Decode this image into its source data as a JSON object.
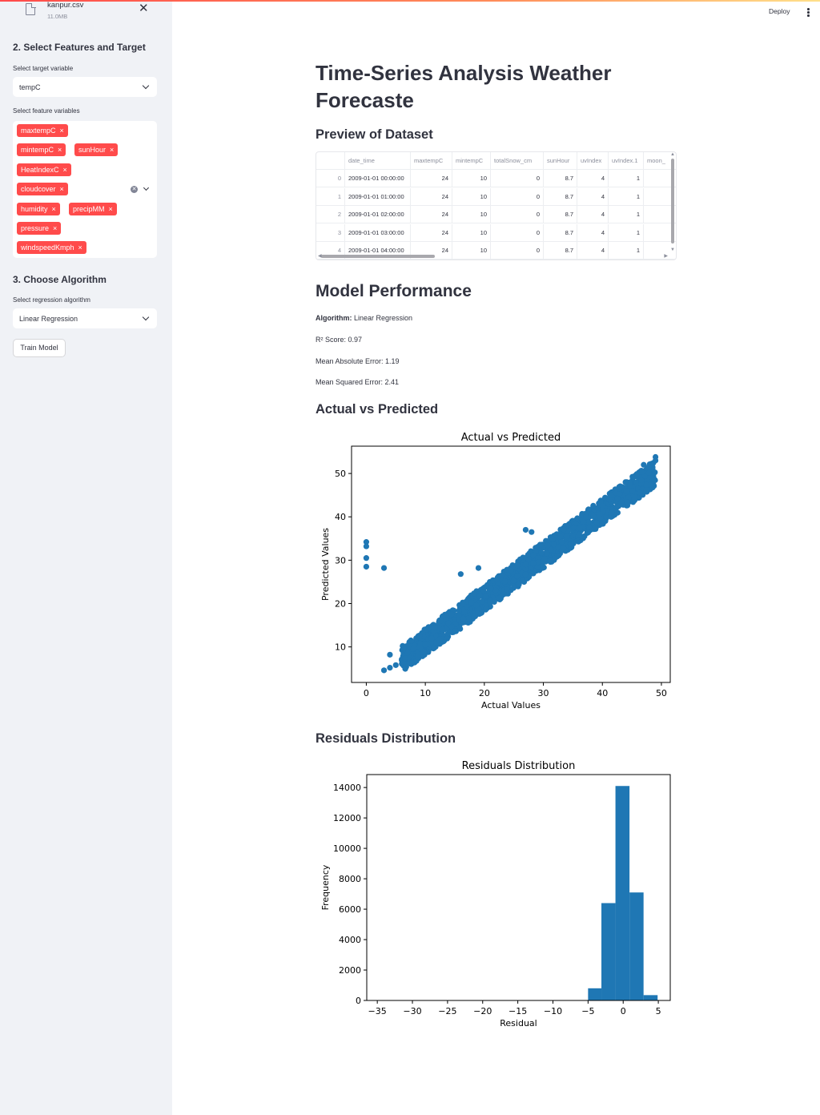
{
  "file": {
    "name": "kanpur.csv",
    "size": "11.0MB"
  },
  "sidebar": {
    "section2_title": "2. Select Features and Target",
    "target_label": "Select target variable",
    "target_value": "tempC",
    "features_label": "Select feature variables",
    "features": [
      "maxtempC",
      "mintempC",
      "sunHour",
      "HeatIndexC",
      "cloudcover",
      "humidity",
      "precipMM",
      "pressure",
      "windspeedKmph"
    ],
    "section3_title": "3. Choose Algorithm",
    "algo_label": "Select regression algorithm",
    "algo_value": "Linear Regression",
    "train_button": "Train Model"
  },
  "header": {
    "deploy": "Deploy"
  },
  "main": {
    "title": "Time-Series Analysis Weather Forecaste",
    "preview_heading": "Preview of Dataset",
    "performance_heading": "Model Performance",
    "algorithm_label": "Algorithm:",
    "algorithm_value": "Linear Regression",
    "r2": "R² Score: 0.97",
    "mae": "Mean Absolute Error: 1.19",
    "mse": "Mean Squared Error: 2.41",
    "avp_heading": "Actual vs Predicted",
    "resid_heading": "Residuals Distribution"
  },
  "table": {
    "columns": [
      "",
      "date_time",
      "maxtempC",
      "mintempC",
      "totalSnow_cm",
      "sunHour",
      "uvIndex",
      "uvIndex.1",
      "moon_"
    ],
    "rows": [
      [
        "0",
        "2009-01-01 00:00:00",
        "24",
        "10",
        "0",
        "8.7",
        "4",
        "1",
        ""
      ],
      [
        "1",
        "2009-01-01 01:00:00",
        "24",
        "10",
        "0",
        "8.7",
        "4",
        "1",
        ""
      ],
      [
        "2",
        "2009-01-01 02:00:00",
        "24",
        "10",
        "0",
        "8.7",
        "4",
        "1",
        ""
      ],
      [
        "3",
        "2009-01-01 03:00:00",
        "24",
        "10",
        "0",
        "8.7",
        "4",
        "1",
        ""
      ],
      [
        "4",
        "2009-01-01 04:00:00",
        "24",
        "10",
        "0",
        "8.7",
        "4",
        "1",
        ""
      ]
    ]
  },
  "chart_data": [
    {
      "type": "scatter",
      "title": "Actual vs Predicted",
      "xlabel": "Actual Values",
      "ylabel": "Predicted Values",
      "xlim": [
        -2.5,
        51.5
      ],
      "ylim": [
        1.8,
        56.3
      ],
      "xticks": [
        0,
        10,
        20,
        30,
        40,
        50
      ],
      "yticks": [
        10,
        20,
        30,
        40,
        50
      ],
      "color": "#1f77b4",
      "trend": {
        "x_range": [
          6,
          49
        ],
        "intercept": 1.2,
        "slope": 1.0,
        "spread": 3
      },
      "points": [
        [
          0,
          34.2
        ],
        [
          0,
          33.2
        ],
        [
          0,
          30.5
        ],
        [
          0,
          28.5
        ],
        [
          3,
          28.2
        ],
        [
          3,
          4.6
        ],
        [
          4,
          8.2
        ],
        [
          4,
          5.2
        ],
        [
          5,
          5.8
        ],
        [
          16,
          26.8
        ],
        [
          19,
          28.2
        ],
        [
          27,
          37
        ],
        [
          28,
          36.5
        ],
        [
          49,
          53.8
        ],
        [
          49,
          53.0
        ],
        [
          47,
          52.0
        ]
      ]
    },
    {
      "type": "bar",
      "title": "Residuals Distribution",
      "xlabel": "Residual",
      "ylabel": "Frequency",
      "xlim": [
        -36.5,
        6.7
      ],
      "ylim": [
        0,
        14850
      ],
      "xticks": [
        -35,
        -30,
        -25,
        -20,
        -15,
        -10,
        -5,
        0,
        5
      ],
      "yticks": [
        0,
        2000,
        4000,
        6000,
        8000,
        10000,
        12000,
        14000
      ],
      "color": "#1f77b4",
      "bins": [
        [
          -5,
          -3.1,
          800
        ],
        [
          -3.1,
          -1.1,
          6400
        ],
        [
          -1.1,
          0.9,
          14100
        ],
        [
          0.9,
          2.9,
          7100
        ],
        [
          2.9,
          4.9,
          350
        ]
      ]
    }
  ]
}
